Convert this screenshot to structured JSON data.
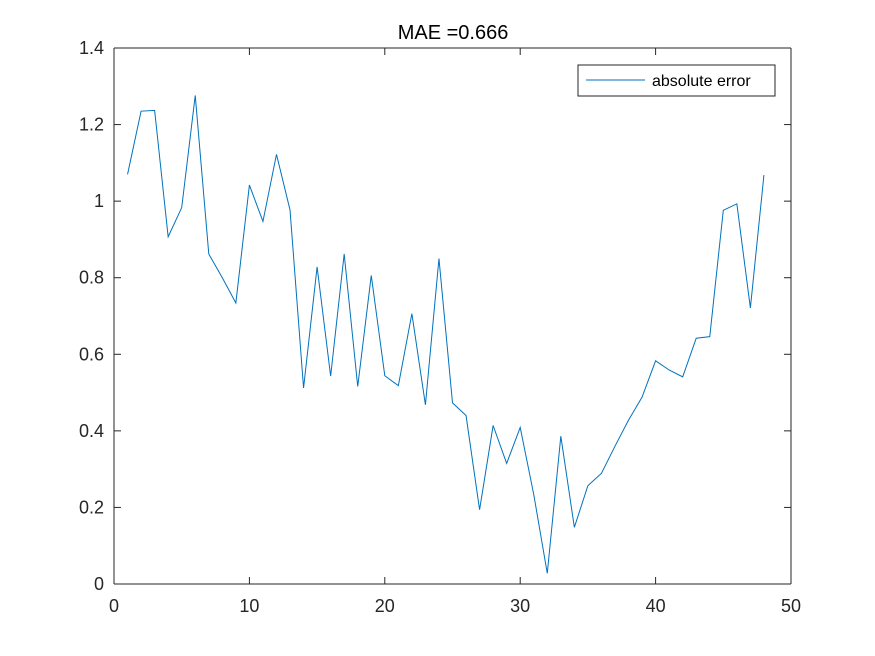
{
  "chart_data": {
    "type": "line",
    "title": "MAE =0.666",
    "xlabel": "",
    "ylabel": "",
    "xlim": [
      0,
      50
    ],
    "ylim": [
      0,
      1.4
    ],
    "xticks": [
      0,
      10,
      20,
      30,
      40,
      50
    ],
    "yticks": [
      0,
      0.2,
      0.4,
      0.6,
      0.8,
      1,
      1.2,
      1.4
    ],
    "xtick_labels": [
      "0",
      "10",
      "20",
      "30",
      "40",
      "50"
    ],
    "ytick_labels": [
      "0",
      "0.2",
      "0.4",
      "0.6",
      "0.8",
      "1",
      "1.2",
      "1.4"
    ],
    "grid": false,
    "legend_position": "top-right",
    "series": [
      {
        "name": "absolute error",
        "color": "#0072BD",
        "x": [
          1,
          2,
          3,
          4,
          5,
          6,
          7,
          8,
          9,
          10,
          11,
          12,
          13,
          14,
          15,
          16,
          17,
          18,
          19,
          20,
          21,
          22,
          23,
          24,
          25,
          26,
          27,
          28,
          29,
          30,
          31,
          32,
          33,
          34,
          35,
          36,
          37,
          38,
          39,
          40,
          41,
          42,
          43,
          44,
          45,
          46,
          47,
          48
        ],
        "values": [
          1.07,
          1.235,
          1.237,
          0.907,
          0.983,
          1.276,
          0.862,
          0.8,
          0.734,
          1.042,
          0.947,
          1.122,
          0.977,
          0.512,
          0.828,
          0.543,
          0.862,
          0.516,
          0.806,
          0.544,
          0.518,
          0.706,
          0.468,
          0.85,
          0.473,
          0.44,
          0.194,
          0.414,
          0.315,
          0.409,
          0.234,
          0.028,
          0.386,
          0.148,
          0.257,
          0.289,
          0.36,
          0.428,
          0.488,
          0.583,
          0.559,
          0.541,
          0.642,
          0.646,
          0.976,
          0.993,
          0.721,
          1.068
        ]
      }
    ]
  }
}
